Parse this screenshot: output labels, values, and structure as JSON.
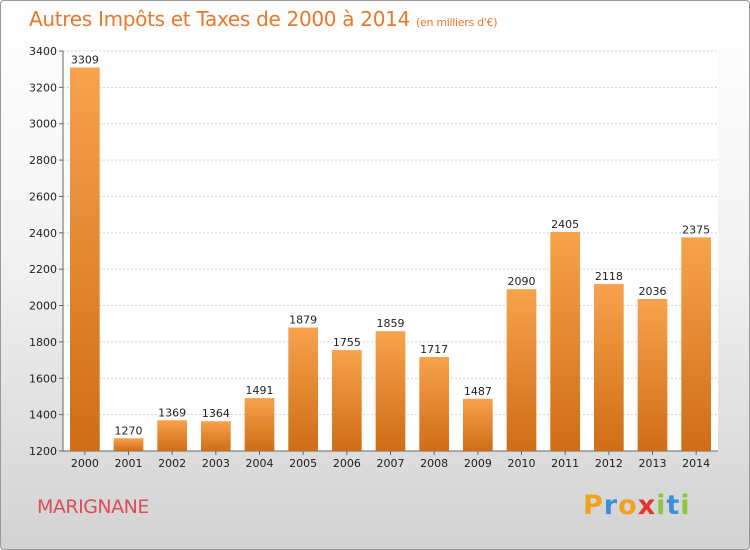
{
  "chart_data": {
    "type": "bar",
    "title": "Autres Impôts et Taxes de 2000 à 2014",
    "subtitle": "(en milliers d'€)",
    "categories": [
      "2000",
      "2001",
      "2002",
      "2003",
      "2004",
      "2005",
      "2006",
      "2007",
      "2008",
      "2009",
      "2010",
      "2011",
      "2012",
      "2013",
      "2014"
    ],
    "values": [
      3309,
      1270,
      1369,
      1364,
      1491,
      1879,
      1755,
      1859,
      1717,
      1487,
      2090,
      2405,
      2118,
      2036,
      2375
    ],
    "ylim": [
      1200,
      3400
    ],
    "yticks": [
      1200,
      1400,
      1600,
      1800,
      2000,
      2200,
      2400,
      2600,
      2800,
      3000,
      3200,
      3400
    ],
    "grid": true,
    "colors": {
      "bar_top": "#f8a24c",
      "bar_bottom": "#cf6d16",
      "title": "#e8782a"
    }
  },
  "footer": {
    "city": "MARIGNANE",
    "logo_letters": [
      "P",
      "r",
      "o",
      "x",
      "i",
      "t",
      "i"
    ],
    "logo_colors": [
      "#f2a11c",
      "#3d8fd6",
      "#f2a11c",
      "#e8332a",
      "#8cc63f",
      "#3d8fd6",
      "#8cc63f"
    ]
  }
}
